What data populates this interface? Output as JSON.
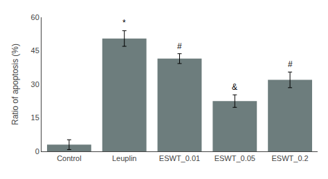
{
  "chart_data": {
    "type": "bar",
    "categories": [
      "Control",
      "Leuplin",
      "ESWT_0.01",
      "ESWT_0.05",
      "ESWT_0.2"
    ],
    "values": [
      3.0,
      50.5,
      41.5,
      22.5,
      32.0
    ],
    "errors": [
      2.2,
      3.5,
      2.2,
      2.8,
      3.5
    ],
    "annotations": [
      null,
      "*",
      "#",
      "&",
      "#"
    ],
    "color": "#6d7d7d",
    "ylabel": "Ratio of apoptosis (%)",
    "ylim": [
      0,
      60
    ],
    "yticks": [
      0,
      15,
      30,
      45,
      60
    ],
    "grid": false
  }
}
